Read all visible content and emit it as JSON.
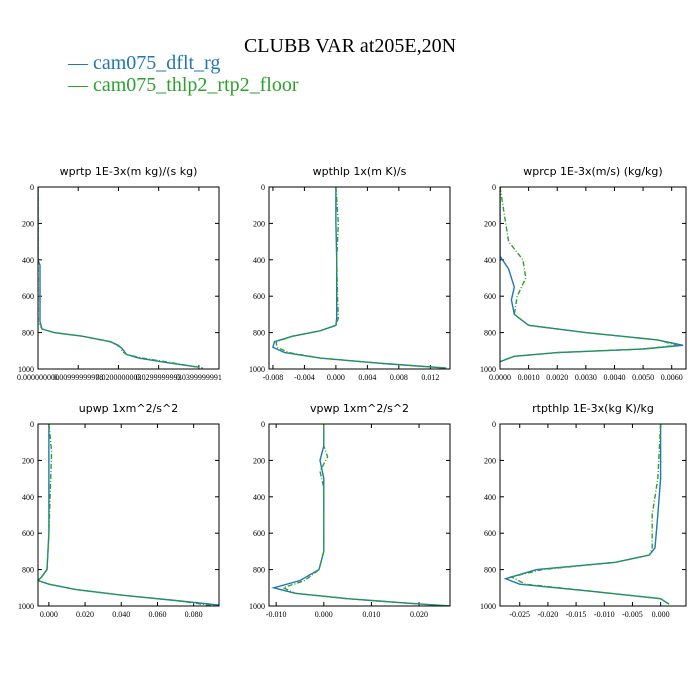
{
  "title": "CLUBB VAR at205E,20N",
  "legend": [
    {
      "label": "— cam075_dflt_rg",
      "color": "#1f77b4"
    },
    {
      "label": "— cam075_thlp2_rtp2_floor",
      "color": "#2ca02c"
    }
  ],
  "chart_data": [
    {
      "type": "line",
      "title": "wprtp 1E-3x(m kg)/(s kg)",
      "xlim": [
        0.0,
        0.045
      ],
      "ylim": [
        1000,
        0
      ],
      "xticks": [
        0.0,
        0.01,
        0.02,
        0.03,
        0.04
      ],
      "xtick_labels": [
        "0.000000000",
        "0.00999999978",
        "0.0200000003",
        "0.0299999993",
        "0.0399999991"
      ],
      "yticks": [
        0,
        200,
        400,
        600,
        800,
        1000
      ],
      "series": [
        {
          "name": "cam075_dflt_rg",
          "color": "#1f77b4",
          "style": "solid",
          "x": [
            0.0,
            0.0,
            0.0005,
            0.0005,
            0.0005,
            0.001,
            0.004,
            0.011,
            0.018,
            0.02,
            0.021,
            0.022,
            0.025,
            0.032,
            0.04
          ],
          "y": [
            0,
            400,
            430,
            600,
            740,
            780,
            800,
            820,
            850,
            870,
            890,
            920,
            940,
            965,
            990
          ]
        },
        {
          "name": "cam075_thlp2_rtp2_floor",
          "color": "#2ca02c",
          "style": "dashed",
          "x": [
            0.0,
            0.0,
            0.0,
            0.0,
            0.001,
            0.004,
            0.011,
            0.018,
            0.0205,
            0.021,
            0.022,
            0.026,
            0.033,
            0.041
          ],
          "y": [
            0,
            400,
            600,
            740,
            780,
            800,
            820,
            850,
            880,
            905,
            920,
            940,
            965,
            995
          ]
        }
      ]
    },
    {
      "type": "line",
      "title": "wpthlp 1x(m K)/s",
      "xlim": [
        -0.0085,
        0.0145
      ],
      "ylim": [
        1000,
        0
      ],
      "xticks": [
        -0.008,
        -0.004,
        0.0,
        0.004,
        0.008,
        0.012
      ],
      "xtick_labels": [
        "-0.008",
        "-0.004",
        "0.000",
        "0.004",
        "0.008",
        "0.012"
      ],
      "yticks": [
        0,
        200,
        400,
        600,
        800,
        1000
      ],
      "series": [
        {
          "name": "cam075_dflt_rg",
          "color": "#1f77b4",
          "style": "solid",
          "x": [
            0.0,
            0.0,
            0.0001,
            0.0001,
            0.0001,
            0.0,
            -0.002,
            -0.0055,
            -0.0078,
            -0.008,
            -0.0065,
            -0.002,
            0.006,
            0.014
          ],
          "y": [
            0,
            200,
            400,
            600,
            720,
            760,
            790,
            820,
            850,
            880,
            910,
            940,
            970,
            995
          ]
        },
        {
          "name": "cam075_thlp2_rtp2_floor",
          "color": "#2ca02c",
          "style": "dashed",
          "x": [
            0.0,
            0.0003,
            0.0001,
            0.0002,
            0.0003,
            0.0,
            -0.002,
            -0.0055,
            -0.0076,
            -0.0075,
            -0.006,
            -0.002,
            0.006,
            0.0142
          ],
          "y": [
            0,
            200,
            400,
            600,
            720,
            760,
            790,
            820,
            850,
            880,
            910,
            940,
            970,
            995
          ]
        }
      ]
    },
    {
      "type": "line",
      "title": "wprcp 1E-3x(m/s) (kg/kg)",
      "xlim": [
        0.0,
        0.0065
      ],
      "ylim": [
        1000,
        0
      ],
      "xticks": [
        0.0,
        0.001,
        0.002,
        0.003,
        0.004,
        0.005,
        0.006
      ],
      "xtick_labels": [
        "0.0000",
        "0.0010",
        "0.0020",
        "0.0030",
        "0.0040",
        "0.0050",
        "0.0060"
      ],
      "yticks": [
        0,
        200,
        400,
        600,
        800,
        1000
      ],
      "series": [
        {
          "name": "cam075_dflt_rg",
          "color": "#1f77b4",
          "style": "solid",
          "x": [
            0.0,
            0.0,
            0.0003,
            0.0005,
            0.0004,
            0.0005,
            0.001,
            0.003,
            0.0055,
            0.0064,
            0.005,
            0.002,
            0.0005,
            0.0
          ],
          "y": [
            0,
            380,
            450,
            550,
            620,
            700,
            760,
            800,
            840,
            870,
            890,
            910,
            930,
            960
          ]
        },
        {
          "name": "cam075_thlp2_rtp2_floor",
          "color": "#2ca02c",
          "style": "dashed",
          "x": [
            0.0,
            0.0003,
            0.0008,
            0.0009,
            0.0006,
            0.0005,
            0.001,
            0.003,
            0.0055,
            0.0062,
            0.005,
            0.002,
            0.0005,
            0.0
          ],
          "y": [
            0,
            300,
            400,
            500,
            600,
            700,
            760,
            800,
            840,
            870,
            890,
            910,
            930,
            960
          ]
        }
      ]
    },
    {
      "type": "line",
      "title": "upwp 1xm^2/s^2",
      "xlim": [
        -0.006,
        0.094
      ],
      "ylim": [
        1000,
        0
      ],
      "xticks": [
        0.0,
        0.02,
        0.04,
        0.06,
        0.08
      ],
      "xtick_labels": [
        "0.000",
        "0.020",
        "0.040",
        "0.060",
        "0.080"
      ],
      "yticks": [
        0,
        200,
        400,
        600,
        800,
        1000
      ],
      "series": [
        {
          "name": "cam075_dflt_rg",
          "color": "#1f77b4",
          "style": "solid",
          "x": [
            0.0,
            0.0,
            0.0,
            -0.001,
            -0.004,
            -0.006,
            0.0,
            0.015,
            0.04,
            0.07,
            0.094
          ],
          "y": [
            0,
            200,
            600,
            800,
            840,
            860,
            880,
            910,
            940,
            970,
            995
          ]
        },
        {
          "name": "cam075_thlp2_rtp2_floor",
          "color": "#2ca02c",
          "style": "dashed",
          "x": [
            0.0,
            0.0015,
            0.0,
            -0.001,
            -0.004,
            -0.006,
            0.0,
            0.015,
            0.04,
            0.07,
            0.092
          ],
          "y": [
            0,
            150,
            600,
            800,
            840,
            860,
            880,
            910,
            940,
            970,
            1000
          ]
        }
      ]
    },
    {
      "type": "line",
      "title": "vpwp 1xm^2/s^2",
      "xlim": [
        -0.0115,
        0.0265
      ],
      "ylim": [
        1000,
        0
      ],
      "xticks": [
        -0.01,
        0.0,
        0.01,
        0.02
      ],
      "xtick_labels": [
        "-0.010",
        "0.000",
        "0.010",
        "0.020"
      ],
      "yticks": [
        0,
        200,
        400,
        600,
        800,
        1000
      ],
      "series": [
        {
          "name": "cam075_dflt_rg",
          "color": "#1f77b4",
          "style": "solid",
          "x": [
            0.0,
            0.0,
            -0.0008,
            0.0,
            0.0,
            -0.001,
            -0.005,
            -0.0105,
            -0.006,
            0.005,
            0.018,
            0.0265
          ],
          "y": [
            0,
            120,
            200,
            300,
            700,
            800,
            860,
            900,
            930,
            960,
            985,
            1000
          ]
        },
        {
          "name": "cam075_thlp2_rtp2_floor",
          "color": "#2ca02c",
          "style": "dashed",
          "x": [
            0.0,
            0.0,
            0.0008,
            -0.0008,
            0.0,
            0.0,
            -0.001,
            -0.004,
            -0.0085,
            -0.006,
            0.005,
            0.018,
            0.026
          ],
          "y": [
            0,
            120,
            180,
            260,
            350,
            700,
            800,
            860,
            900,
            930,
            960,
            985,
            1000
          ]
        }
      ]
    },
    {
      "type": "line",
      "title": "rtpthlp 1E-3x(kg K)/kg",
      "xlim": [
        -0.0285,
        0.0045
      ],
      "ylim": [
        1000,
        0
      ],
      "xticks": [
        -0.025,
        -0.02,
        -0.015,
        -0.01,
        -0.005,
        0.0
      ],
      "xtick_labels": [
        "-0.025",
        "-0.020",
        "-0.015",
        "-0.010",
        "-0.005",
        "0.000"
      ],
      "yticks": [
        0,
        200,
        400,
        600,
        800,
        1000
      ],
      "series": [
        {
          "name": "cam075_dflt_rg",
          "color": "#1f77b4",
          "style": "solid",
          "x": [
            0.0,
            0.0,
            -0.0005,
            -0.001,
            -0.002,
            -0.008,
            -0.022,
            -0.0275,
            -0.025,
            -0.012,
            0.0,
            0.0015
          ],
          "y": [
            0,
            300,
            500,
            680,
            720,
            760,
            800,
            850,
            880,
            920,
            960,
            990
          ]
        },
        {
          "name": "cam075_thlp2_rtp2_floor",
          "color": "#2ca02c",
          "style": "dashed",
          "x": [
            0.0,
            -0.0005,
            -0.0015,
            -0.0015,
            -0.002,
            -0.008,
            -0.021,
            -0.0265,
            -0.024,
            -0.012,
            0.0,
            0.0015
          ],
          "y": [
            0,
            300,
            500,
            680,
            720,
            760,
            800,
            840,
            880,
            920,
            960,
            990
          ]
        }
      ]
    }
  ]
}
